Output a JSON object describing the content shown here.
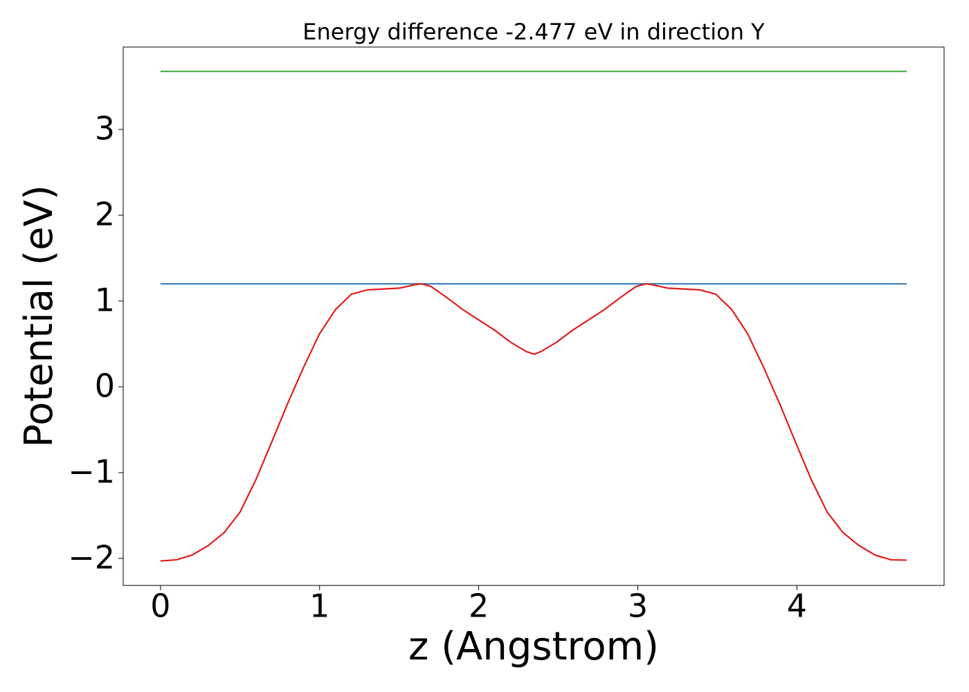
{
  "chart_data": {
    "type": "line",
    "title": "Energy difference -2.477 eV in direction Y",
    "xlabel": "z (Angstrom)",
    "ylabel": "Potential (eV)",
    "xlim": [
      -0.2345,
      4.925
    ],
    "ylim": [
      -2.315,
      3.96
    ],
    "xticks": [
      0,
      1,
      2,
      3,
      4
    ],
    "yticks": [
      {
        "value": -2,
        "label": "−2"
      },
      {
        "value": -1,
        "label": "−1"
      },
      0,
      1,
      2,
      3
    ],
    "grid": false,
    "series": [
      {
        "color": "#4daf4a",
        "x": [
          0,
          4.69
        ],
        "values": [
          3.677,
          3.677
        ]
      },
      {
        "color": "#377eb8",
        "x": [
          0,
          4.69
        ],
        "values": [
          1.2,
          1.2
        ]
      },
      {
        "color": "#e41a1c",
        "x": [
          0,
          0.1,
          0.2,
          0.3,
          0.4,
          0.5,
          0.6,
          0.7,
          0.8,
          0.9,
          1.0,
          1.1,
          1.2,
          1.3,
          1.4,
          1.5,
          1.6,
          1.64,
          1.7,
          1.8,
          1.9,
          2.0,
          2.1,
          2.2,
          2.3,
          2.35,
          2.39,
          2.49,
          2.59,
          2.69,
          2.79,
          2.89,
          2.99,
          3.05,
          3.09,
          3.19,
          3.29,
          3.39,
          3.49,
          3.59,
          3.69,
          3.79,
          3.89,
          3.99,
          4.09,
          4.19,
          4.29,
          4.39,
          4.49,
          4.59,
          4.69
        ],
        "values": [
          -2.03,
          -2.016,
          -1.96,
          -1.85,
          -1.7,
          -1.46,
          -1.08,
          -0.64,
          -0.19,
          0.23,
          0.62,
          0.9,
          1.08,
          1.13,
          1.14,
          1.15,
          1.19,
          1.2,
          1.17,
          1.04,
          0.9,
          0.78,
          0.66,
          0.52,
          0.41,
          0.38,
          0.41,
          0.52,
          0.66,
          0.78,
          0.9,
          1.04,
          1.17,
          1.2,
          1.19,
          1.15,
          1.14,
          1.13,
          1.08,
          0.9,
          0.62,
          0.23,
          -0.19,
          -0.64,
          -1.08,
          -1.46,
          -1.7,
          -1.85,
          -1.96,
          -2.016,
          -2.02
        ]
      }
    ]
  }
}
